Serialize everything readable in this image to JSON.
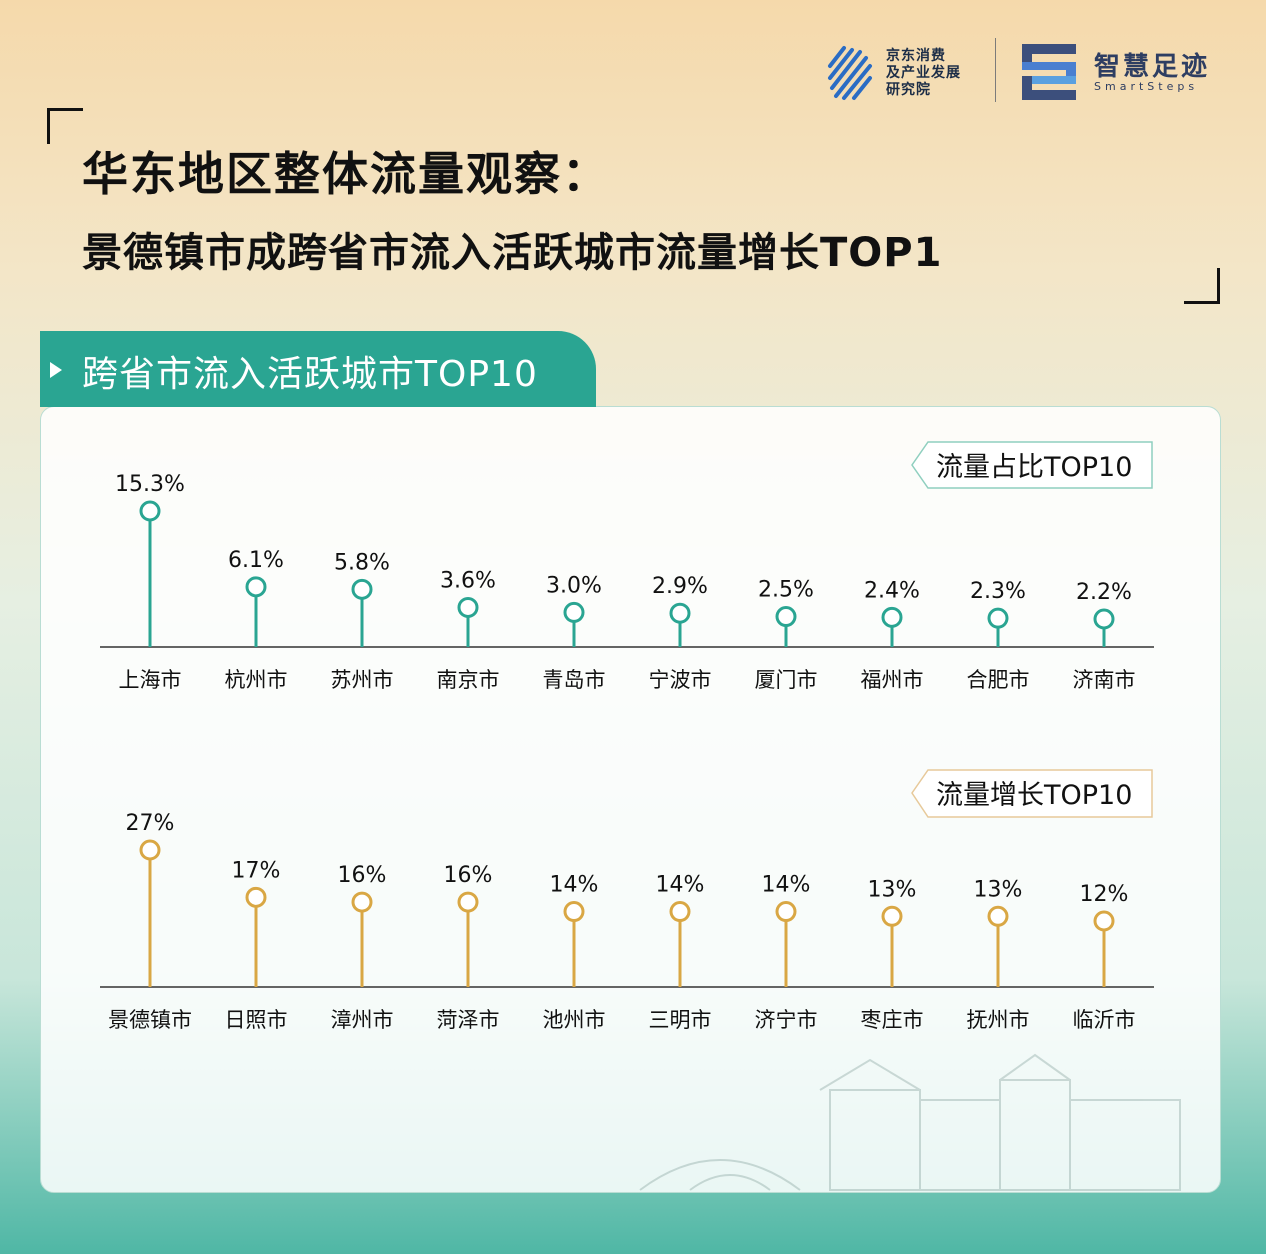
{
  "brand": {
    "institute_lines": [
      "京东消费",
      "及产业发展",
      "研究院"
    ],
    "smartsteps_name": "智慧足迹",
    "smartsteps_sub": "SmartSteps"
  },
  "header": {
    "title_line1": "华东地区整体流量观察：",
    "title_line2": "景德镇市成跨省市流入活跃城市流量增长TOP1"
  },
  "section": {
    "tab_label": "跨省市流入活跃城市TOP10"
  },
  "colors": {
    "teal": "#2aa592",
    "gold": "#d9a744"
  },
  "chart_data": [
    {
      "type": "lollipop",
      "title": "流量占比TOP10",
      "categories": [
        "上海市",
        "杭州市",
        "苏州市",
        "南京市",
        "青岛市",
        "宁波市",
        "厦门市",
        "福州市",
        "合肥市",
        "济南市"
      ],
      "values": [
        15.3,
        6.1,
        5.8,
        3.6,
        3.0,
        2.9,
        2.5,
        2.4,
        2.3,
        2.2
      ],
      "labels": [
        "15.3%",
        "6.1%",
        "5.8%",
        "3.6%",
        "3.0%",
        "2.9%",
        "2.5%",
        "2.4%",
        "2.3%",
        "2.2%"
      ],
      "color": "#2aa592"
    },
    {
      "type": "lollipop",
      "title": "流量增长TOP10",
      "categories": [
        "景德镇市",
        "日照市",
        "漳州市",
        "菏泽市",
        "池州市",
        "三明市",
        "济宁市",
        "枣庄市",
        "抚州市",
        "临沂市"
      ],
      "values": [
        27,
        17,
        16,
        16,
        14,
        14,
        14,
        13,
        13,
        12
      ],
      "labels": [
        "27%",
        "17%",
        "16%",
        "16%",
        "14%",
        "14%",
        "14%",
        "13%",
        "13%",
        "12%"
      ],
      "color": "#d9a744"
    }
  ]
}
